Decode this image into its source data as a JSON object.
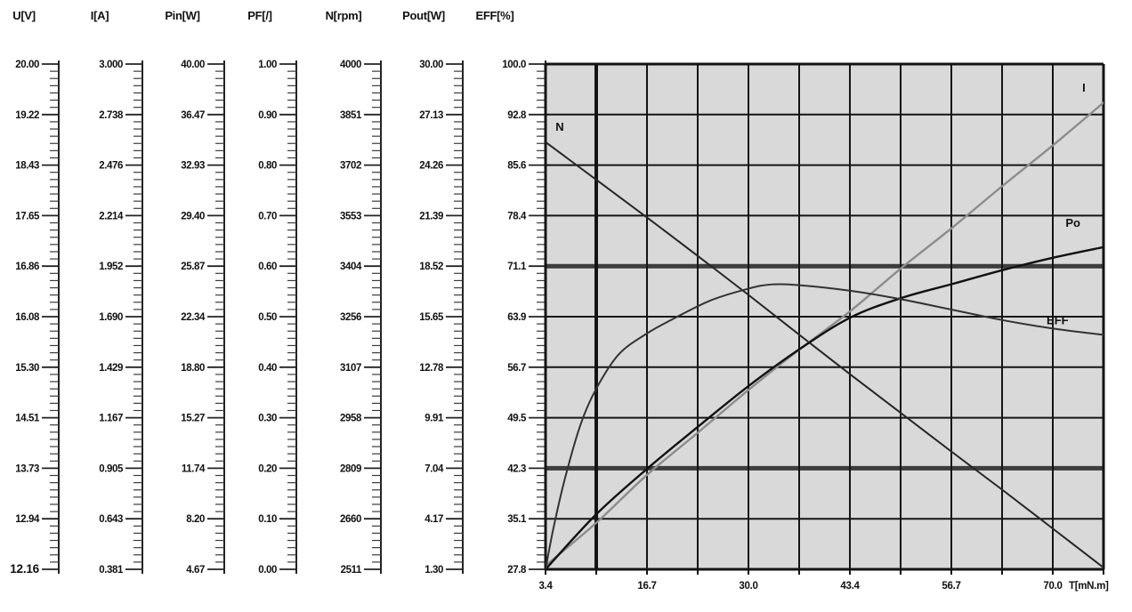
{
  "figure_type": "motor performance curve chart",
  "axes": [
    {
      "name": "U[V]",
      "ticks": [
        "20.00",
        "19.22",
        "18.43",
        "17.65",
        "16.86",
        "16.08",
        "15.30",
        "14.51",
        "13.73",
        "12.94",
        "12.16"
      ],
      "bold_tick_index": 10
    },
    {
      "name": "I[A]",
      "ticks": [
        "3.000",
        "2.738",
        "2.476",
        "2.214",
        "1.952",
        "1.690",
        "1.429",
        "1.167",
        "0.905",
        "0.643",
        "0.381"
      ]
    },
    {
      "name": "Pin[W]",
      "ticks": [
        "40.00",
        "36.47",
        "32.93",
        "29.40",
        "25.87",
        "22.34",
        "18.80",
        "15.27",
        "11.74",
        "8.20",
        "4.67"
      ]
    },
    {
      "name": "PF[/]",
      "ticks": [
        "1.00",
        "0.90",
        "0.80",
        "0.70",
        "0.60",
        "0.50",
        "0.40",
        "0.30",
        "0.20",
        "0.10",
        "0.00"
      ]
    },
    {
      "name": "N[rpm]",
      "ticks": [
        "4000",
        "3851",
        "3702",
        "3553",
        "3404",
        "3256",
        "3107",
        "2958",
        "2809",
        "2660",
        "2511"
      ]
    },
    {
      "name": "Pout[W]",
      "ticks": [
        "30.00",
        "27.13",
        "24.26",
        "21.39",
        "18.52",
        "15.65",
        "12.78",
        "9.91",
        "7.04",
        "4.17",
        "1.30"
      ]
    },
    {
      "name": "EFF[%]",
      "ticks": [
        "100.0",
        "92.8",
        "85.6",
        "78.4",
        "71.1",
        "63.9",
        "56.7",
        "49.5",
        "42.3",
        "35.1",
        "27.8"
      ]
    }
  ],
  "x_axis": {
    "labels": [
      "3.4",
      "16.7",
      "30.0",
      "43.4",
      "56.7",
      "70.0"
    ],
    "unit": "T[mN.m]"
  },
  "colors": {
    "plot_bg": "#d9d9d9",
    "grid": "#141414",
    "thick_row": "#3d3d3d",
    "text": "#111111",
    "i_curve": "#8c8c8c"
  },
  "chart_data": {
    "type": "line",
    "title": "",
    "xlabel": "T[mN.m]",
    "x_range": [
      3.4,
      76.6
    ],
    "x_tick_values": [
      3.4,
      16.7,
      30.0,
      43.4,
      56.7,
      70.0
    ],
    "grid": "on",
    "note": "curve point values estimated from plot against their own vertical scales",
    "series": [
      {
        "name": "N[rpm]",
        "short": "N",
        "color": "#262626",
        "width": 2,
        "range": [
          2511,
          4000
        ],
        "x": [
          3.4,
          10,
          16.7,
          23.4,
          30,
          36.7,
          43.4,
          50,
          56.7,
          63.4,
          70,
          76.6
        ],
        "v": [
          3770,
          3660,
          3548,
          3434,
          3320,
          3202,
          3085,
          2972,
          2857,
          2744,
          2630,
          2516
        ],
        "label_pos": [
          0.018,
          0.132
        ]
      },
      {
        "name": "I[A]",
        "short": "I",
        "color": "#8c8c8c",
        "width": 2.4,
        "range": [
          0.381,
          3.0
        ],
        "x": [
          3.4,
          10,
          16.7,
          23.4,
          30,
          36.7,
          43.4,
          50,
          56.7,
          63.4,
          70,
          76.6
        ],
        "v": [
          0.4,
          0.62,
          0.87,
          1.09,
          1.31,
          1.52,
          1.72,
          1.94,
          2.15,
          2.37,
          2.58,
          2.8
        ],
        "label_pos": [
          0.962,
          0.055
        ]
      },
      {
        "name": "Pout[W]",
        "short": "Po",
        "color": "#111111",
        "width": 2.4,
        "range": [
          1.3,
          30.0
        ],
        "x": [
          3.4,
          10,
          16.7,
          23.4,
          30,
          36.7,
          43.4,
          50,
          56.7,
          63.4,
          70,
          76.6
        ],
        "v": [
          1.3,
          4.4,
          7.0,
          9.4,
          11.7,
          13.8,
          15.6,
          16.7,
          17.5,
          18.3,
          19.0,
          19.6
        ],
        "label_pos": [
          0.932,
          0.322
        ]
      },
      {
        "name": "EFF[%]",
        "short": "EFF",
        "color": "#333333",
        "width": 2,
        "range": [
          27.8,
          100.0
        ],
        "x": [
          3.4,
          4.5,
          6,
          8,
          10,
          13,
          16.7,
          20,
          25,
          30,
          33,
          36.7,
          43.4,
          50,
          56.7,
          63.4,
          70,
          76.6
        ],
        "v": [
          27.8,
          34,
          41,
          48.5,
          53.5,
          58.5,
          61.5,
          63.5,
          66.2,
          67.9,
          68.5,
          68.4,
          67.6,
          66.4,
          64.9,
          63.4,
          62.2,
          61.3
        ],
        "label_pos": [
          0.898,
          0.515
        ]
      }
    ]
  }
}
